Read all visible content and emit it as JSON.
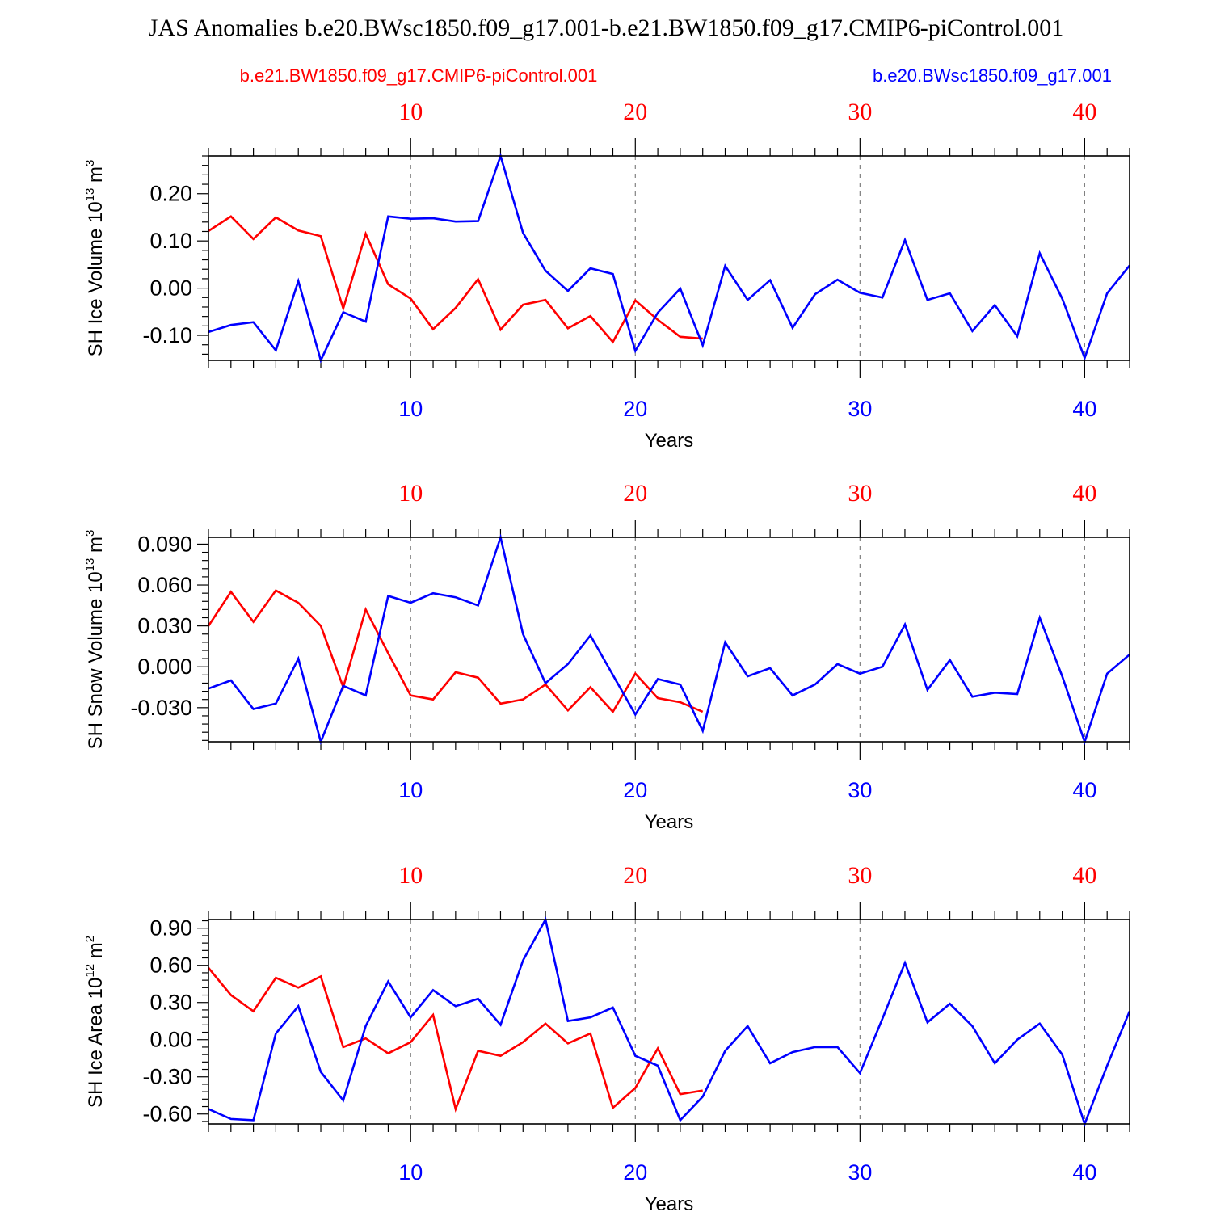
{
  "title": "JAS Anomalies b.e20.BWsc1850.f09_g17.001-b.e21.BW1850.f09_g17.CMIP6-piControl.001",
  "legend": {
    "left": "b.e21.BW1850.f09_g17.CMIP6-piControl.001",
    "right": "b.e20.BWsc1850.f09_g17.001"
  },
  "colors": {
    "control": "#ff0000",
    "experiment": "#0000ff",
    "axis": "#000000",
    "grid": "#808080"
  },
  "chart_data": [
    {
      "type": "line",
      "ylabel": "SH Ice Volume 10",
      "ylabel_exp": "13",
      "ylabel_unit": " m",
      "ylabel_unit_exp": "3",
      "xlabel": "Years",
      "xlim": [
        1,
        42
      ],
      "ylim": [
        -0.153,
        0.28
      ],
      "yticks": [
        -0.1,
        0.0,
        0.1,
        0.2
      ],
      "yticklabels": [
        "-0.10",
        "0.00",
        "0.10",
        "0.20"
      ],
      "xticks": [
        10,
        20,
        30,
        40
      ],
      "xticklabels": [
        "10",
        "20",
        "30",
        "40"
      ],
      "series": [
        {
          "name": "b.e21.BW1850.f09_g17.CMIP6-piControl.001",
          "color": "#ff0000",
          "x_start": 1,
          "values": [
            0.121,
            0.152,
            0.104,
            0.15,
            0.122,
            0.11,
            -0.043,
            0.115,
            0.008,
            -0.022,
            -0.087,
            -0.042,
            0.019,
            -0.088,
            -0.035,
            -0.025,
            -0.085,
            -0.059,
            -0.114,
            -0.026,
            -0.067,
            -0.103,
            -0.107
          ]
        },
        {
          "name": "b.e20.BWsc1850.f09_g17.001",
          "color": "#0000ff",
          "x_start": 1,
          "values": [
            -0.093,
            -0.078,
            -0.072,
            -0.132,
            0.015,
            -0.153,
            -0.051,
            -0.071,
            0.152,
            0.147,
            0.148,
            0.141,
            0.142,
            0.28,
            0.117,
            0.037,
            -0.006,
            0.042,
            0.03,
            -0.133,
            -0.052,
            -0.001,
            -0.121,
            0.047,
            -0.025,
            0.017,
            -0.084,
            -0.013,
            0.018,
            -0.01,
            -0.02,
            0.102,
            -0.025,
            -0.011,
            -0.091,
            -0.036,
            -0.102,
            0.074,
            -0.022,
            -0.148,
            -0.011,
            0.048
          ]
        }
      ]
    },
    {
      "type": "line",
      "ylabel": "SH Snow Volume 10",
      "ylabel_exp": "13",
      "ylabel_unit": " m",
      "ylabel_unit_exp": "3",
      "xlabel": "Years",
      "xlim": [
        1,
        42
      ],
      "ylim": [
        -0.055,
        0.095
      ],
      "yticks": [
        -0.03,
        0.0,
        0.03,
        0.06,
        0.09
      ],
      "yticklabels": [
        "-0.030",
        "0.000",
        "0.030",
        "0.060",
        "0.090"
      ],
      "xticks": [
        10,
        20,
        30,
        40
      ],
      "xticklabels": [
        "10",
        "20",
        "30",
        "40"
      ],
      "series": [
        {
          "name": "b.e21.BW1850.f09_g17.CMIP6-piControl.001",
          "color": "#ff0000",
          "x_start": 1,
          "values": [
            0.03,
            0.055,
            0.033,
            0.056,
            0.047,
            0.03,
            -0.015,
            0.042,
            0.01,
            -0.021,
            -0.024,
            -0.004,
            -0.008,
            -0.027,
            -0.024,
            -0.013,
            -0.032,
            -0.015,
            -0.033,
            -0.005,
            -0.023,
            -0.026,
            -0.033
          ]
        },
        {
          "name": "b.e20.BWsc1850.f09_g17.001",
          "color": "#0000ff",
          "x_start": 1,
          "values": [
            -0.016,
            -0.01,
            -0.031,
            -0.027,
            0.006,
            -0.055,
            -0.014,
            -0.021,
            0.052,
            0.047,
            0.054,
            0.051,
            0.045,
            0.095,
            0.024,
            -0.012,
            0.002,
            0.023,
            -0.006,
            -0.035,
            -0.009,
            -0.013,
            -0.047,
            0.018,
            -0.007,
            -0.001,
            -0.021,
            -0.013,
            0.002,
            -0.005,
            0.0,
            0.031,
            -0.017,
            0.005,
            -0.022,
            -0.019,
            -0.02,
            0.036,
            -0.007,
            -0.055,
            -0.005,
            0.009
          ]
        }
      ]
    },
    {
      "type": "line",
      "ylabel": "SH Ice Area 10",
      "ylabel_exp": "12",
      "ylabel_unit": " m",
      "ylabel_unit_exp": "2",
      "xlabel": "Years",
      "xlim": [
        1,
        42
      ],
      "ylim": [
        -0.68,
        0.97
      ],
      "yticks": [
        -0.6,
        -0.3,
        0.0,
        0.3,
        0.6,
        0.9
      ],
      "yticklabels": [
        "-0.60",
        "-0.30",
        "0.00",
        "0.30",
        "0.60",
        "0.90"
      ],
      "xticks": [
        10,
        20,
        30,
        40
      ],
      "xticklabels": [
        "10",
        "20",
        "30",
        "40"
      ],
      "series": [
        {
          "name": "b.e21.BW1850.f09_g17.CMIP6-piControl.001",
          "color": "#ff0000",
          "x_start": 1,
          "values": [
            0.58,
            0.36,
            0.23,
            0.5,
            0.42,
            0.51,
            -0.06,
            0.01,
            -0.11,
            -0.02,
            0.2,
            -0.56,
            -0.09,
            -0.13,
            -0.02,
            0.13,
            -0.03,
            0.05,
            -0.55,
            -0.39,
            -0.07,
            -0.44,
            -0.41
          ]
        },
        {
          "name": "b.e20.BWsc1850.f09_g17.001",
          "color": "#0000ff",
          "x_start": 1,
          "values": [
            -0.56,
            -0.64,
            -0.65,
            0.05,
            0.27,
            -0.26,
            -0.49,
            0.11,
            0.47,
            0.18,
            0.4,
            0.27,
            0.33,
            0.12,
            0.64,
            0.97,
            0.15,
            0.18,
            0.26,
            -0.13,
            -0.21,
            -0.65,
            -0.46,
            -0.09,
            0.11,
            -0.19,
            -0.1,
            -0.06,
            -0.06,
            -0.27,
            0.17,
            0.62,
            0.14,
            0.29,
            0.11,
            -0.19,
            0.0,
            0.13,
            -0.12,
            -0.68,
            -0.21,
            0.23
          ]
        }
      ]
    }
  ]
}
